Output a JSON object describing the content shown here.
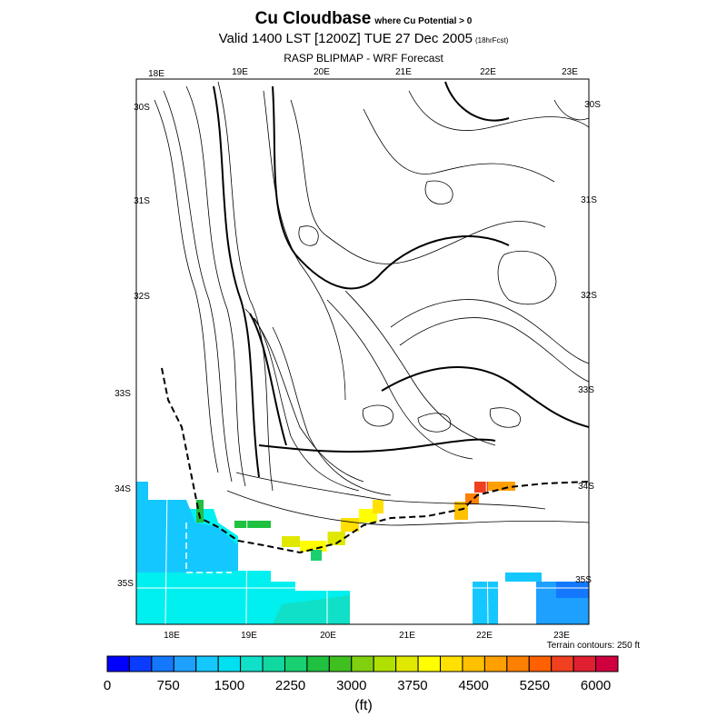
{
  "header": {
    "title": "Cu Cloudbase",
    "title_suffix": "where Cu Potential > 0",
    "valid": "Valid 1400 LST [1200Z] TUE 27 Dec 2005",
    "valid_suffix": "(18hrFcst)",
    "subtitle": "RASP BLIPMAP - WRF Forecast"
  },
  "map": {
    "top_lon_labels": [
      "18E",
      "19E",
      "20E",
      "21E",
      "22E",
      "23E"
    ],
    "bottom_lon_labels": [
      "18E",
      "19E",
      "20E",
      "21E",
      "22E",
      "23E"
    ],
    "left_lat_labels": [
      "30S",
      "31S",
      "32S",
      "33S",
      "34S",
      "35S"
    ],
    "right_lat_labels": [
      "30S",
      "31S",
      "32S",
      "33S",
      "34S",
      "35S"
    ],
    "terrain_note": "Terrain contours: 250 ft"
  },
  "colorbar": {
    "unit": "(ft)",
    "tick_labels": [
      "0",
      "750",
      "1500",
      "2250",
      "3000",
      "3750",
      "4500",
      "5250",
      "6000"
    ],
    "colors": [
      "#0000ff",
      "#0a3cff",
      "#1478ff",
      "#1ea0ff",
      "#14c8ff",
      "#00e0f0",
      "#10e0c8",
      "#10d8a0",
      "#18d070",
      "#20c040",
      "#40c020",
      "#80d010",
      "#b0e000",
      "#e0e800",
      "#ffff00",
      "#ffe000",
      "#ffc000",
      "#ffa000",
      "#ff8000",
      "#ff6000",
      "#f04020",
      "#e02030",
      "#d00040"
    ]
  }
}
